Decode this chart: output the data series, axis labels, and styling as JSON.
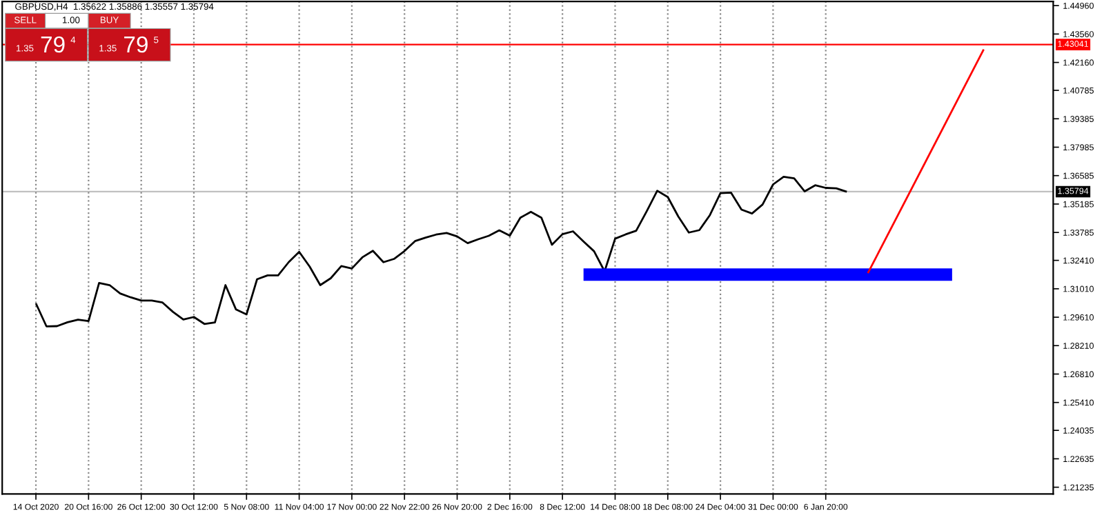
{
  "chart_data": {
    "type": "line",
    "title": "GBPUSD,H4  1.35622 1.35886 1.35557 1.35794",
    "annotations": [
      "SELL",
      "1.00",
      "BUY",
      "1.35",
      "79",
      "4",
      "1.35",
      "79",
      "5"
    ],
    "categories": [
      "14 Oct 2020",
      null,
      null,
      null,
      null,
      "20 Oct 16:00",
      null,
      null,
      null,
      null,
      "26 Oct 12:00",
      null,
      null,
      null,
      null,
      "30 Oct 12:00",
      null,
      null,
      null,
      null,
      "5 Nov 08:00",
      null,
      null,
      null,
      null,
      "11 Nov 04:00",
      null,
      null,
      null,
      null,
      "17 Nov 00:00",
      null,
      null,
      null,
      null,
      "22 Nov 22:00",
      null,
      null,
      null,
      null,
      "26 Nov 20:00",
      null,
      null,
      null,
      null,
      "2 Dec 16:00",
      null,
      null,
      null,
      null,
      "8 Dec 12:00",
      null,
      null,
      null,
      null,
      "14 Dec 08:00",
      null,
      null,
      null,
      null,
      "18 Dec 08:00",
      null,
      null,
      null,
      null,
      "24 Dec 04:00",
      null,
      null,
      null,
      null,
      "31 Dec 00:00",
      null,
      null,
      null,
      null,
      "6 Jan 20:00",
      null,
      null,
      null,
      null,
      null,
      null,
      null,
      null,
      null,
      null,
      null,
      null,
      null,
      null,
      null,
      null,
      null,
      null,
      null,
      null,
      null
    ],
    "series": [
      {
        "color": "#000000",
        "values": [
          1.3029,
          1.2916,
          1.2917,
          1.2936,
          1.2949,
          1.2942,
          1.313,
          1.3119,
          1.3078,
          1.3059,
          1.3043,
          1.3043,
          1.3034,
          1.2988,
          1.295,
          1.2962,
          1.2928,
          1.2935,
          1.3119,
          1.2999,
          1.2975,
          1.3148,
          1.3167,
          1.3167,
          1.3232,
          1.3283,
          1.321,
          1.3119,
          1.3153,
          1.3213,
          1.3201,
          1.3256,
          1.3288,
          1.3232,
          1.3248,
          1.3287,
          1.3336,
          1.3353,
          1.3368,
          1.3376,
          1.3359,
          1.3326,
          1.3345,
          1.3362,
          1.3389,
          1.3363,
          1.3451,
          1.348,
          1.3451,
          1.3318,
          1.337,
          1.3384,
          1.3334,
          1.3286,
          1.3187,
          1.3348,
          1.3369,
          1.3387,
          1.3483,
          1.3584,
          1.3553,
          1.3457,
          1.3378,
          1.339,
          1.3464,
          1.3572,
          1.3575,
          1.3491,
          1.3472,
          1.3516,
          1.3615,
          1.3653,
          1.3645,
          1.3581,
          1.3611,
          1.3598,
          1.3596,
          1.3579,
          null,
          null,
          null,
          null,
          null,
          null,
          null,
          null,
          null,
          null,
          null,
          null,
          null,
          null,
          null,
          null,
          null,
          null,
          null
        ]
      },
      {
        "color": "#0000ff",
        "values": [
          null,
          null,
          null,
          null,
          null,
          null,
          null,
          null,
          null,
          null,
          null,
          null,
          null,
          null,
          null,
          null,
          null,
          null,
          null,
          null,
          null,
          null,
          null,
          null,
          null,
          null,
          null,
          null,
          null,
          null,
          null,
          null,
          null,
          null,
          null,
          null,
          null,
          null,
          null,
          null,
          null,
          null,
          null,
          null,
          null,
          null,
          null,
          null,
          null,
          null,
          null,
          null,
          1.3171,
          null,
          null,
          null,
          null,
          null,
          null,
          null,
          null,
          null,
          null,
          null,
          null,
          null,
          null,
          null,
          null,
          null,
          null,
          null,
          null,
          null,
          null,
          null,
          null,
          null,
          null,
          null,
          null,
          null,
          null,
          null,
          null,
          null,
          null,
          1.3171,
          null,
          null,
          null,
          null,
          null,
          null,
          null,
          null,
          null
        ]
      },
      {
        "color": "#ff0000",
        "values": [
          null,
          null,
          null,
          null,
          null,
          null,
          null,
          null,
          null,
          null,
          null,
          null,
          null,
          null,
          null,
          null,
          null,
          null,
          null,
          null,
          null,
          null,
          null,
          null,
          null,
          null,
          null,
          null,
          null,
          null,
          null,
          null,
          null,
          null,
          null,
          null,
          null,
          null,
          null,
          null,
          null,
          null,
          null,
          null,
          null,
          null,
          null,
          null,
          null,
          null,
          null,
          null,
          null,
          null,
          null,
          null,
          null,
          null,
          null,
          null,
          null,
          null,
          null,
          null,
          null,
          null,
          null,
          null,
          null,
          null,
          null,
          null,
          null,
          null,
          null,
          null,
          null,
          null,
          null,
          1.3178,
          null,
          null,
          null,
          null,
          null,
          null,
          null,
          null,
          null,
          null,
          1.428,
          null,
          null,
          null,
          null,
          null,
          null
        ]
      }
    ],
    "ylim": [
      1.209,
      1.4516
    ],
    "yticks": [
      {
        "value": 1.4496,
        "label": "1.44960"
      },
      {
        "value": 1.4356,
        "label": "1.43560"
      },
      {
        "value": 1.4216,
        "label": "1.42160"
      },
      1.40785,
      1.39385,
      1.37985,
      1.36585,
      1.35185,
      1.33785,
      {
        "value": 1.3241,
        "label": "1.32410"
      },
      {
        "value": 1.3101,
        "label": "1.31010"
      },
      {
        "value": 1.2961,
        "label": "1.29610"
      },
      {
        "value": 1.2821,
        "label": "1.28210"
      },
      {
        "value": 1.2681,
        "label": "1.26810"
      },
      {
        "value": 1.2541,
        "label": "1.25410"
      },
      1.24035,
      1.22635,
      1.21235
    ],
    "ref_lines": [
      {
        "axis": "y",
        "value": 1.43041,
        "label": "1.43041",
        "color": "#ff0000"
      },
      {
        "axis": "y",
        "value": 1.35794,
        "label": "1.35794",
        "color": "#c0c0c0"
      }
    ],
    "grid": "x",
    "line_style": "solid"
  }
}
